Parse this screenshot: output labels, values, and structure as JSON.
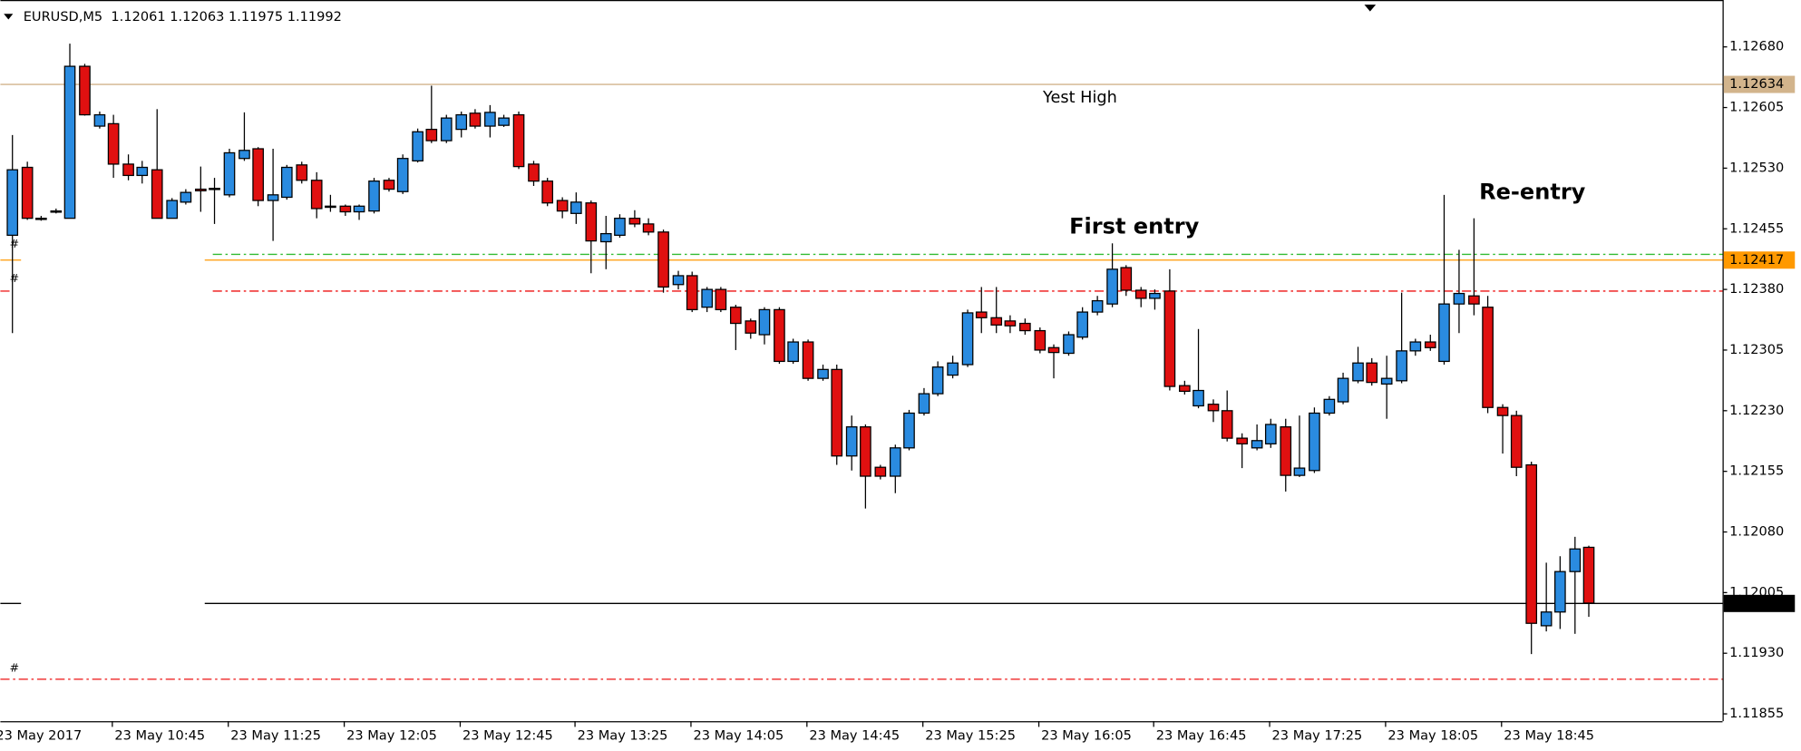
{
  "chart_data": {
    "type": "candlestick",
    "header": "EURUSD,M5  1.12061 1.12063 1.11975 1.11992",
    "date_label": "23 May 2017",
    "categories": [
      null,
      null,
      null,
      null,
      null,
      null,
      null,
      "23 May 10:45",
      null,
      null,
      null,
      null,
      null,
      null,
      null,
      "23 May 11:25",
      null,
      null,
      null,
      null,
      null,
      null,
      null,
      "23 May 12:05",
      null,
      null,
      null,
      null,
      null,
      null,
      null,
      "23 May 12:45",
      null,
      null,
      null,
      null,
      null,
      null,
      null,
      "23 May 13:25",
      null,
      null,
      null,
      null,
      null,
      null,
      null,
      "23 May 14:05",
      null,
      null,
      null,
      null,
      null,
      null,
      null,
      "23 May 14:45",
      null,
      null,
      null,
      null,
      null,
      null,
      null,
      "23 May 15:25",
      null,
      null,
      null,
      null,
      null,
      null,
      null,
      "23 May 16:05",
      null,
      null,
      null,
      null,
      null,
      null,
      null,
      "23 May 16:45",
      null,
      null,
      null,
      null,
      null,
      null,
      null,
      "23 May 17:25",
      null,
      null,
      null,
      null,
      null,
      null,
      null,
      "23 May 18:05",
      null,
      null,
      null,
      null,
      null,
      null,
      null,
      "23 May 18:45",
      null,
      null,
      null,
      null,
      null,
      null
    ],
    "open": [
      1.12447,
      1.12531,
      1.12468,
      1.12476,
      1.12468,
      1.12656,
      1.12582,
      1.12585,
      1.12535,
      1.12521,
      1.12528,
      1.12468,
      1.12488,
      1.12504,
      1.12504,
      1.12497,
      1.12542,
      1.12554,
      1.1249,
      1.12494,
      1.12534,
      1.12515,
      1.12483,
      1.12483,
      1.12476,
      1.12477,
      1.12515,
      1.12501,
      1.12539,
      1.12578,
      1.12564,
      1.12578,
      1.12598,
      1.12582,
      1.12583,
      1.12596,
      1.12535,
      1.12514,
      1.1249,
      1.12474,
      1.12487,
      1.12439,
      1.12447,
      1.12468,
      1.12461,
      1.12451,
      1.12386,
      1.12397,
      1.12358,
      1.1238,
      1.12358,
      1.12341,
      1.12324,
      1.12355,
      1.12291,
      1.12315,
      1.1227,
      1.12281,
      1.12174,
      1.1221,
      1.1216,
      1.12149,
      1.12184,
      1.12227,
      1.12251,
      1.12274,
      1.12287,
      1.12352,
      1.12345,
      1.12341,
      1.12338,
      1.12329,
      1.12308,
      1.12301,
      1.12321,
      1.12352,
      1.12362,
      1.12407,
      1.12379,
      1.12369,
      1.12378,
      1.12261,
      1.12236,
      1.12238,
      1.1223,
      1.12196,
      1.12184,
      1.12189,
      1.1221,
      1.1215,
      1.12156,
      1.12227,
      1.12241,
      1.12267,
      1.12289,
      1.12263,
      1.12267,
      1.12304,
      1.12315,
      1.12291,
      1.12362,
      1.12372,
      1.12358,
      1.12234,
      1.12224,
      1.12163,
      1.11964,
      1.11981,
      1.12031,
      1.12061
    ],
    "high": [
      1.12571,
      1.12538,
      1.12471,
      1.1248,
      1.12684,
      1.12659,
      1.126,
      1.12596,
      1.12547,
      1.12539,
      1.12603,
      1.12493,
      1.12504,
      1.12532,
      1.12518,
      1.12554,
      1.12599,
      1.12556,
      1.12554,
      1.12534,
      1.12538,
      1.12525,
      1.12497,
      1.12485,
      1.12485,
      1.12518,
      1.12518,
      1.12547,
      1.12579,
      1.12632,
      1.12596,
      1.126,
      1.12603,
      1.12608,
      1.12596,
      1.126,
      1.12539,
      1.12518,
      1.12494,
      1.125,
      1.1249,
      1.12471,
      1.12473,
      1.12478,
      1.12468,
      1.12454,
      1.12403,
      1.12402,
      1.12383,
      1.12383,
      1.12361,
      1.12344,
      1.12358,
      1.12358,
      1.12319,
      1.12318,
      1.12287,
      1.12287,
      1.12224,
      1.12213,
      1.12163,
      1.12188,
      1.12231,
      1.12258,
      1.12291,
      1.12298,
      1.12355,
      1.12383,
      1.12383,
      1.12348,
      1.12344,
      1.12333,
      1.12312,
      1.12328,
      1.12358,
      1.12372,
      1.12437,
      1.1241,
      1.12383,
      1.1238,
      1.12405,
      1.12267,
      1.12331,
      1.12244,
      1.12255,
      1.12202,
      1.12213,
      1.1222,
      1.1222,
      1.12224,
      1.12234,
      1.12248,
      1.12277,
      1.12309,
      1.12295,
      1.12298,
      1.12376,
      1.12319,
      1.12324,
      1.12497,
      1.12429,
      1.12468,
      1.12372,
      1.12238,
      1.1223,
      1.12167,
      1.12042,
      1.1205,
      1.12074,
      1.12063
    ],
    "low": [
      1.12326,
      1.12466,
      1.12465,
      1.12474,
      1.12468,
      1.12595,
      1.12579,
      1.12518,
      1.12515,
      1.12511,
      1.12468,
      1.12468,
      1.12485,
      1.12476,
      1.12461,
      1.12494,
      1.12539,
      1.12483,
      1.1244,
      1.12491,
      1.12511,
      1.12468,
      1.12476,
      1.12471,
      1.12466,
      1.12474,
      1.12501,
      1.12498,
      1.12537,
      1.12561,
      1.12561,
      1.12568,
      1.12579,
      1.12568,
      1.12581,
      1.12529,
      1.12508,
      1.12483,
      1.12468,
      1.12461,
      1.124,
      1.12405,
      1.12444,
      1.12457,
      1.12447,
      1.12376,
      1.1238,
      1.12352,
      1.12352,
      1.12352,
      1.12305,
      1.12319,
      1.12312,
      1.12288,
      1.12288,
      1.12267,
      1.12267,
      1.12163,
      1.12156,
      1.12109,
      1.12145,
      1.12128,
      1.12181,
      1.12224,
      1.12248,
      1.1227,
      1.12284,
      1.12326,
      1.12326,
      1.12326,
      1.12324,
      1.12301,
      1.1227,
      1.12298,
      1.12318,
      1.12348,
      1.12358,
      1.12372,
      1.12358,
      1.12355,
      1.12255,
      1.1225,
      1.12233,
      1.12216,
      1.12192,
      1.12159,
      1.12181,
      1.12184,
      1.1213,
      1.12148,
      1.12153,
      1.12224,
      1.12238,
      1.12264,
      1.12261,
      1.1222,
      1.12264,
      1.12298,
      1.12304,
      1.12287,
      1.12326,
      1.12348,
      1.12227,
      1.12177,
      1.12149,
      1.11929,
      1.11957,
      1.1196,
      1.11954,
      1.11975
    ],
    "close": [
      1.12528,
      1.12468,
      1.12468,
      1.12477,
      1.12656,
      1.12596,
      1.12596,
      1.12535,
      1.12521,
      1.12531,
      1.12468,
      1.1249,
      1.125,
      1.12502,
      1.12505,
      1.12549,
      1.12552,
      1.1249,
      1.12497,
      1.12531,
      1.12515,
      1.1248,
      1.12482,
      1.12476,
      1.12483,
      1.12514,
      1.12504,
      1.12542,
      1.12575,
      1.12564,
      1.12592,
      1.12596,
      1.12582,
      1.12599,
      1.12592,
      1.12532,
      1.12514,
      1.12487,
      1.12477,
      1.12488,
      1.1244,
      1.12449,
      1.12468,
      1.12461,
      1.12451,
      1.12383,
      1.12397,
      1.12355,
      1.1238,
      1.12355,
      1.12338,
      1.12326,
      1.12355,
      1.12291,
      1.12315,
      1.1227,
      1.12281,
      1.12174,
      1.1221,
      1.12149,
      1.12149,
      1.12184,
      1.12227,
      1.12251,
      1.12284,
      1.12289,
      1.12351,
      1.12345,
      1.12336,
      1.12335,
      1.12329,
      1.12305,
      1.12302,
      1.12324,
      1.12352,
      1.12366,
      1.12405,
      1.12379,
      1.12369,
      1.12375,
      1.1226,
      1.12254,
      1.12255,
      1.1223,
      1.12196,
      1.12189,
      1.12193,
      1.12213,
      1.1215,
      1.12159,
      1.12227,
      1.12244,
      1.1227,
      1.12289,
      1.12265,
      1.1227,
      1.12304,
      1.12315,
      1.12308,
      1.12362,
      1.12375,
      1.12362,
      1.12234,
      1.12224,
      1.1216,
      1.11967,
      1.11981,
      1.12031,
      1.12059,
      1.11992
    ],
    "up_color": "#2a8be0",
    "down_color": "#e01010",
    "ylim": [
      1.11846,
      1.12738
    ],
    "yticks": [
      {
        "value": 1.1268,
        "label": "1.12680"
      },
      {
        "value": 1.12605,
        "label": "1.12605"
      },
      {
        "value": 1.1253,
        "label": "1.12530"
      },
      {
        "value": 1.12455,
        "label": "1.12455"
      },
      {
        "value": 1.1238,
        "label": "1.12380"
      },
      {
        "value": 1.12305,
        "label": "1.12305"
      },
      {
        "value": 1.1223,
        "label": "1.12230"
      },
      {
        "value": 1.12155,
        "label": "1.12155"
      },
      {
        "value": 1.1208,
        "label": "1.12080"
      },
      {
        "value": 1.12005,
        "label": "1.12005"
      },
      {
        "value": 1.1193,
        "label": "1.11930"
      },
      {
        "value": 1.11855,
        "label": "1.11855"
      }
    ],
    "grid": false,
    "levels": [
      {
        "value": 1.12634,
        "label": "1.12634",
        "text": "Yest High",
        "color": "#d2b48c",
        "style": "solid"
      },
      {
        "value": 1.12424,
        "color": "#33bb33",
        "style": "dashdot"
      },
      {
        "value": 1.12417,
        "label": "1.12417",
        "color": "#ff9900",
        "style": "solid"
      },
      {
        "value": 1.12379,
        "color": "#ee1111",
        "style": "dashdot"
      },
      {
        "value": 1.11992,
        "label": "1.11992",
        "color": "#000000",
        "style": "solid"
      },
      {
        "value": 1.11899,
        "color": "#ee1111",
        "style": "dashdot"
      }
    ],
    "annotations": [
      {
        "text": "First entry",
        "color": "#ff33ff"
      },
      {
        "text": "Re-entry",
        "color": "#ff33ff"
      }
    ],
    "markers": [
      "#",
      "#",
      "#"
    ]
  }
}
